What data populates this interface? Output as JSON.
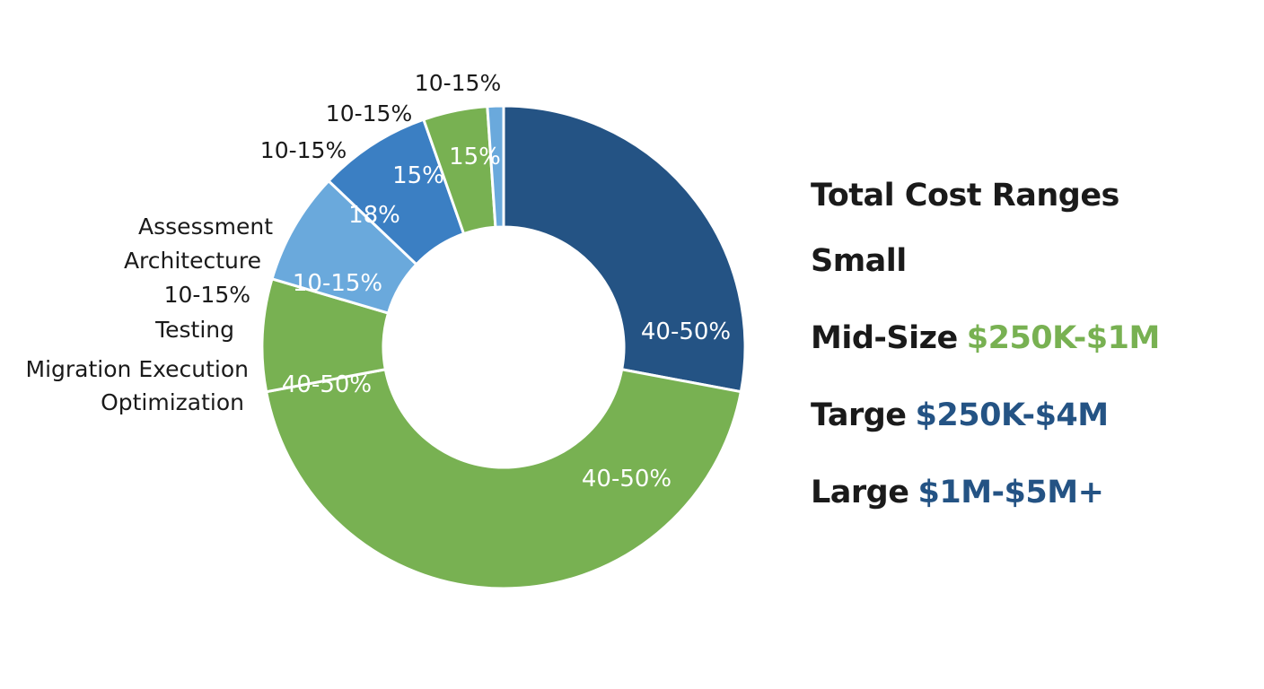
{
  "chart_data": {
    "type": "pie",
    "donut": true,
    "title": "",
    "slices": [
      {
        "label": "40-50%",
        "value": 26,
        "color": "#245384"
      },
      {
        "label": "40-50%",
        "value": 41,
        "color": "#78b152"
      },
      {
        "label": "10-15%",
        "value": 7,
        "color": "#78b152"
      },
      {
        "label": "18%",
        "value": 7,
        "color": "#6aa9dc"
      },
      {
        "label": "15%",
        "value": 7,
        "color": "#3b7fc3"
      },
      {
        "label": "15%",
        "value": 4,
        "color": "#78b152"
      },
      {
        "label": "",
        "value": 1,
        "color": "#6aa9dc"
      }
    ],
    "slice_label_positions": [
      "40-50%",
      "40-50%",
      "40-50%"
    ],
    "outer_labels": [
      "10-15%",
      "10-15%",
      "10-15%",
      "Assessment",
      "Architecture",
      "10-15%",
      "Testing",
      "Migration Execution",
      "Optimization"
    ],
    "legend": {
      "title": "Total Cost Ranges",
      "rows": [
        {
          "name": "Small",
          "range": "",
          "color": "#78b152"
        },
        {
          "name": "Mid-Size",
          "range": "$250K-$1M",
          "color": "#78b152"
        },
        {
          "name": "Targe",
          "range": "$250K-$4M",
          "color": "#245384"
        },
        {
          "name": "Large",
          "range": "$1M-$5M+",
          "color": "#245384"
        }
      ]
    }
  }
}
